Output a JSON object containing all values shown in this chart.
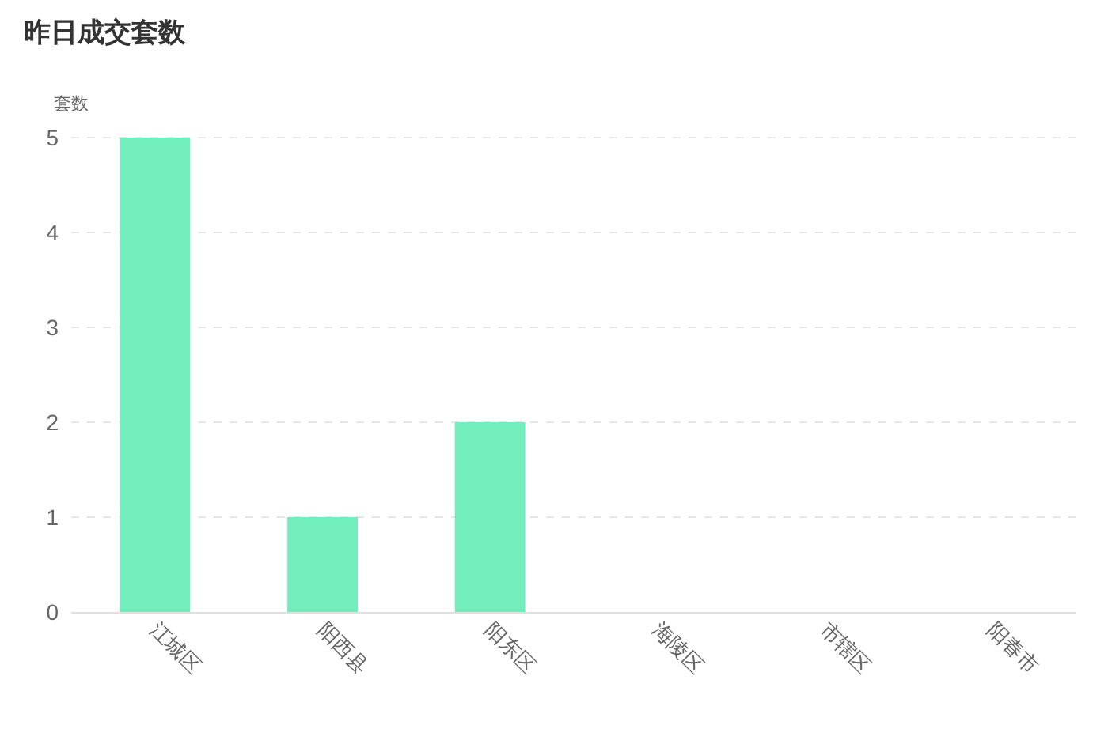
{
  "chart_data": {
    "type": "bar",
    "title": "昨日成交套数",
    "ylabel": "套数",
    "categories": [
      "江城区",
      "阳西县",
      "阳东区",
      "海陵区",
      "市辖区",
      "阳春市"
    ],
    "values": [
      5,
      1,
      2,
      0,
      0,
      0
    ],
    "color": "#72eebd",
    "ylim": [
      0,
      5
    ],
    "yticks": [
      0,
      1,
      2,
      3,
      4,
      5
    ],
    "grid": "y"
  }
}
